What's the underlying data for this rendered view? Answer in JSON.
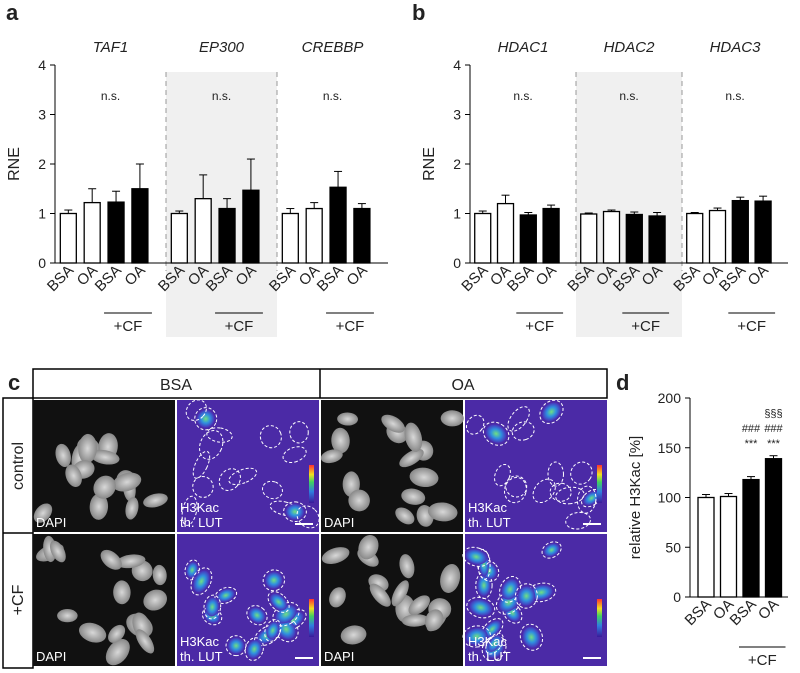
{
  "chart_data": [
    {
      "type": "grouped-bar",
      "label": "a",
      "ylabel": "RNE",
      "ylim": [
        0,
        4
      ],
      "yticks": [
        0,
        1,
        2,
        3,
        4
      ],
      "colors": [
        "#ffffff",
        "#ffffff",
        "#000000",
        "#000000"
      ],
      "groups": [
        {
          "title": "TAF1",
          "annotation": "n.s.",
          "categories": [
            "BSA",
            "OA",
            "BSA",
            "OA"
          ],
          "values": [
            1.0,
            1.22,
            1.23,
            1.5
          ],
          "errors": [
            0.07,
            0.28,
            0.22,
            0.5
          ],
          "bracket": "+CF"
        },
        {
          "title": "EP300",
          "annotation": "n.s.",
          "categories": [
            "BSA",
            "OA",
            "BSA",
            "OA"
          ],
          "values": [
            1.0,
            1.3,
            1.1,
            1.47
          ],
          "errors": [
            0.05,
            0.48,
            0.2,
            0.63
          ],
          "bracket": "+CF"
        },
        {
          "title": "CREBBP",
          "annotation": "n.s.",
          "categories": [
            "BSA",
            "OA",
            "BSA",
            "OA"
          ],
          "values": [
            1.0,
            1.1,
            1.53,
            1.1
          ],
          "errors": [
            0.1,
            0.12,
            0.32,
            0.1
          ],
          "bracket": "+CF"
        }
      ]
    },
    {
      "type": "grouped-bar",
      "label": "b",
      "ylabel": "RNE",
      "ylim": [
        0,
        4
      ],
      "yticks": [
        0,
        1,
        2,
        3,
        4
      ],
      "colors": [
        "#ffffff",
        "#ffffff",
        "#000000",
        "#000000"
      ],
      "groups": [
        {
          "title": "HDAC1",
          "annotation": "n.s.",
          "categories": [
            "BSA",
            "OA",
            "BSA",
            "OA"
          ],
          "values": [
            1.0,
            1.2,
            0.97,
            1.1
          ],
          "errors": [
            0.05,
            0.17,
            0.05,
            0.07
          ],
          "bracket": "+CF"
        },
        {
          "title": "HDAC2",
          "annotation": "n.s.",
          "categories": [
            "BSA",
            "OA",
            "BSA",
            "OA"
          ],
          "values": [
            0.99,
            1.04,
            0.98,
            0.95
          ],
          "errors": [
            0.02,
            0.03,
            0.05,
            0.07
          ],
          "bracket": "+CF"
        },
        {
          "title": "HDAC3",
          "annotation": "n.s.",
          "categories": [
            "BSA",
            "OA",
            "BSA",
            "OA"
          ],
          "values": [
            1.0,
            1.06,
            1.26,
            1.25
          ],
          "errors": [
            0.02,
            0.05,
            0.07,
            0.1
          ],
          "bracket": "+CF"
        }
      ]
    },
    {
      "type": "bar",
      "label": "d",
      "ylabel": "relative H3Kac [%]",
      "ylim": [
        0,
        200
      ],
      "yticks": [
        0,
        50,
        100,
        150,
        200
      ],
      "colors": [
        "#ffffff",
        "#ffffff",
        "#000000",
        "#000000"
      ],
      "categories": [
        "BSA",
        "OA",
        "BSA",
        "OA"
      ],
      "values": [
        100,
        101,
        118,
        139
      ],
      "errors": [
        3,
        3,
        3,
        3
      ],
      "annotations": [
        [],
        [],
        [
          "***",
          "###"
        ],
        [
          "***",
          "###",
          "§§§"
        ]
      ],
      "bracket": "+CF"
    }
  ],
  "microscopy": {
    "label": "c",
    "columns": [
      "BSA",
      "OA"
    ],
    "rows": [
      "control",
      "+CF"
    ],
    "channels": [
      [
        "DAPI"
      ],
      [
        "H3Kac",
        "th. LUT"
      ]
    ]
  }
}
